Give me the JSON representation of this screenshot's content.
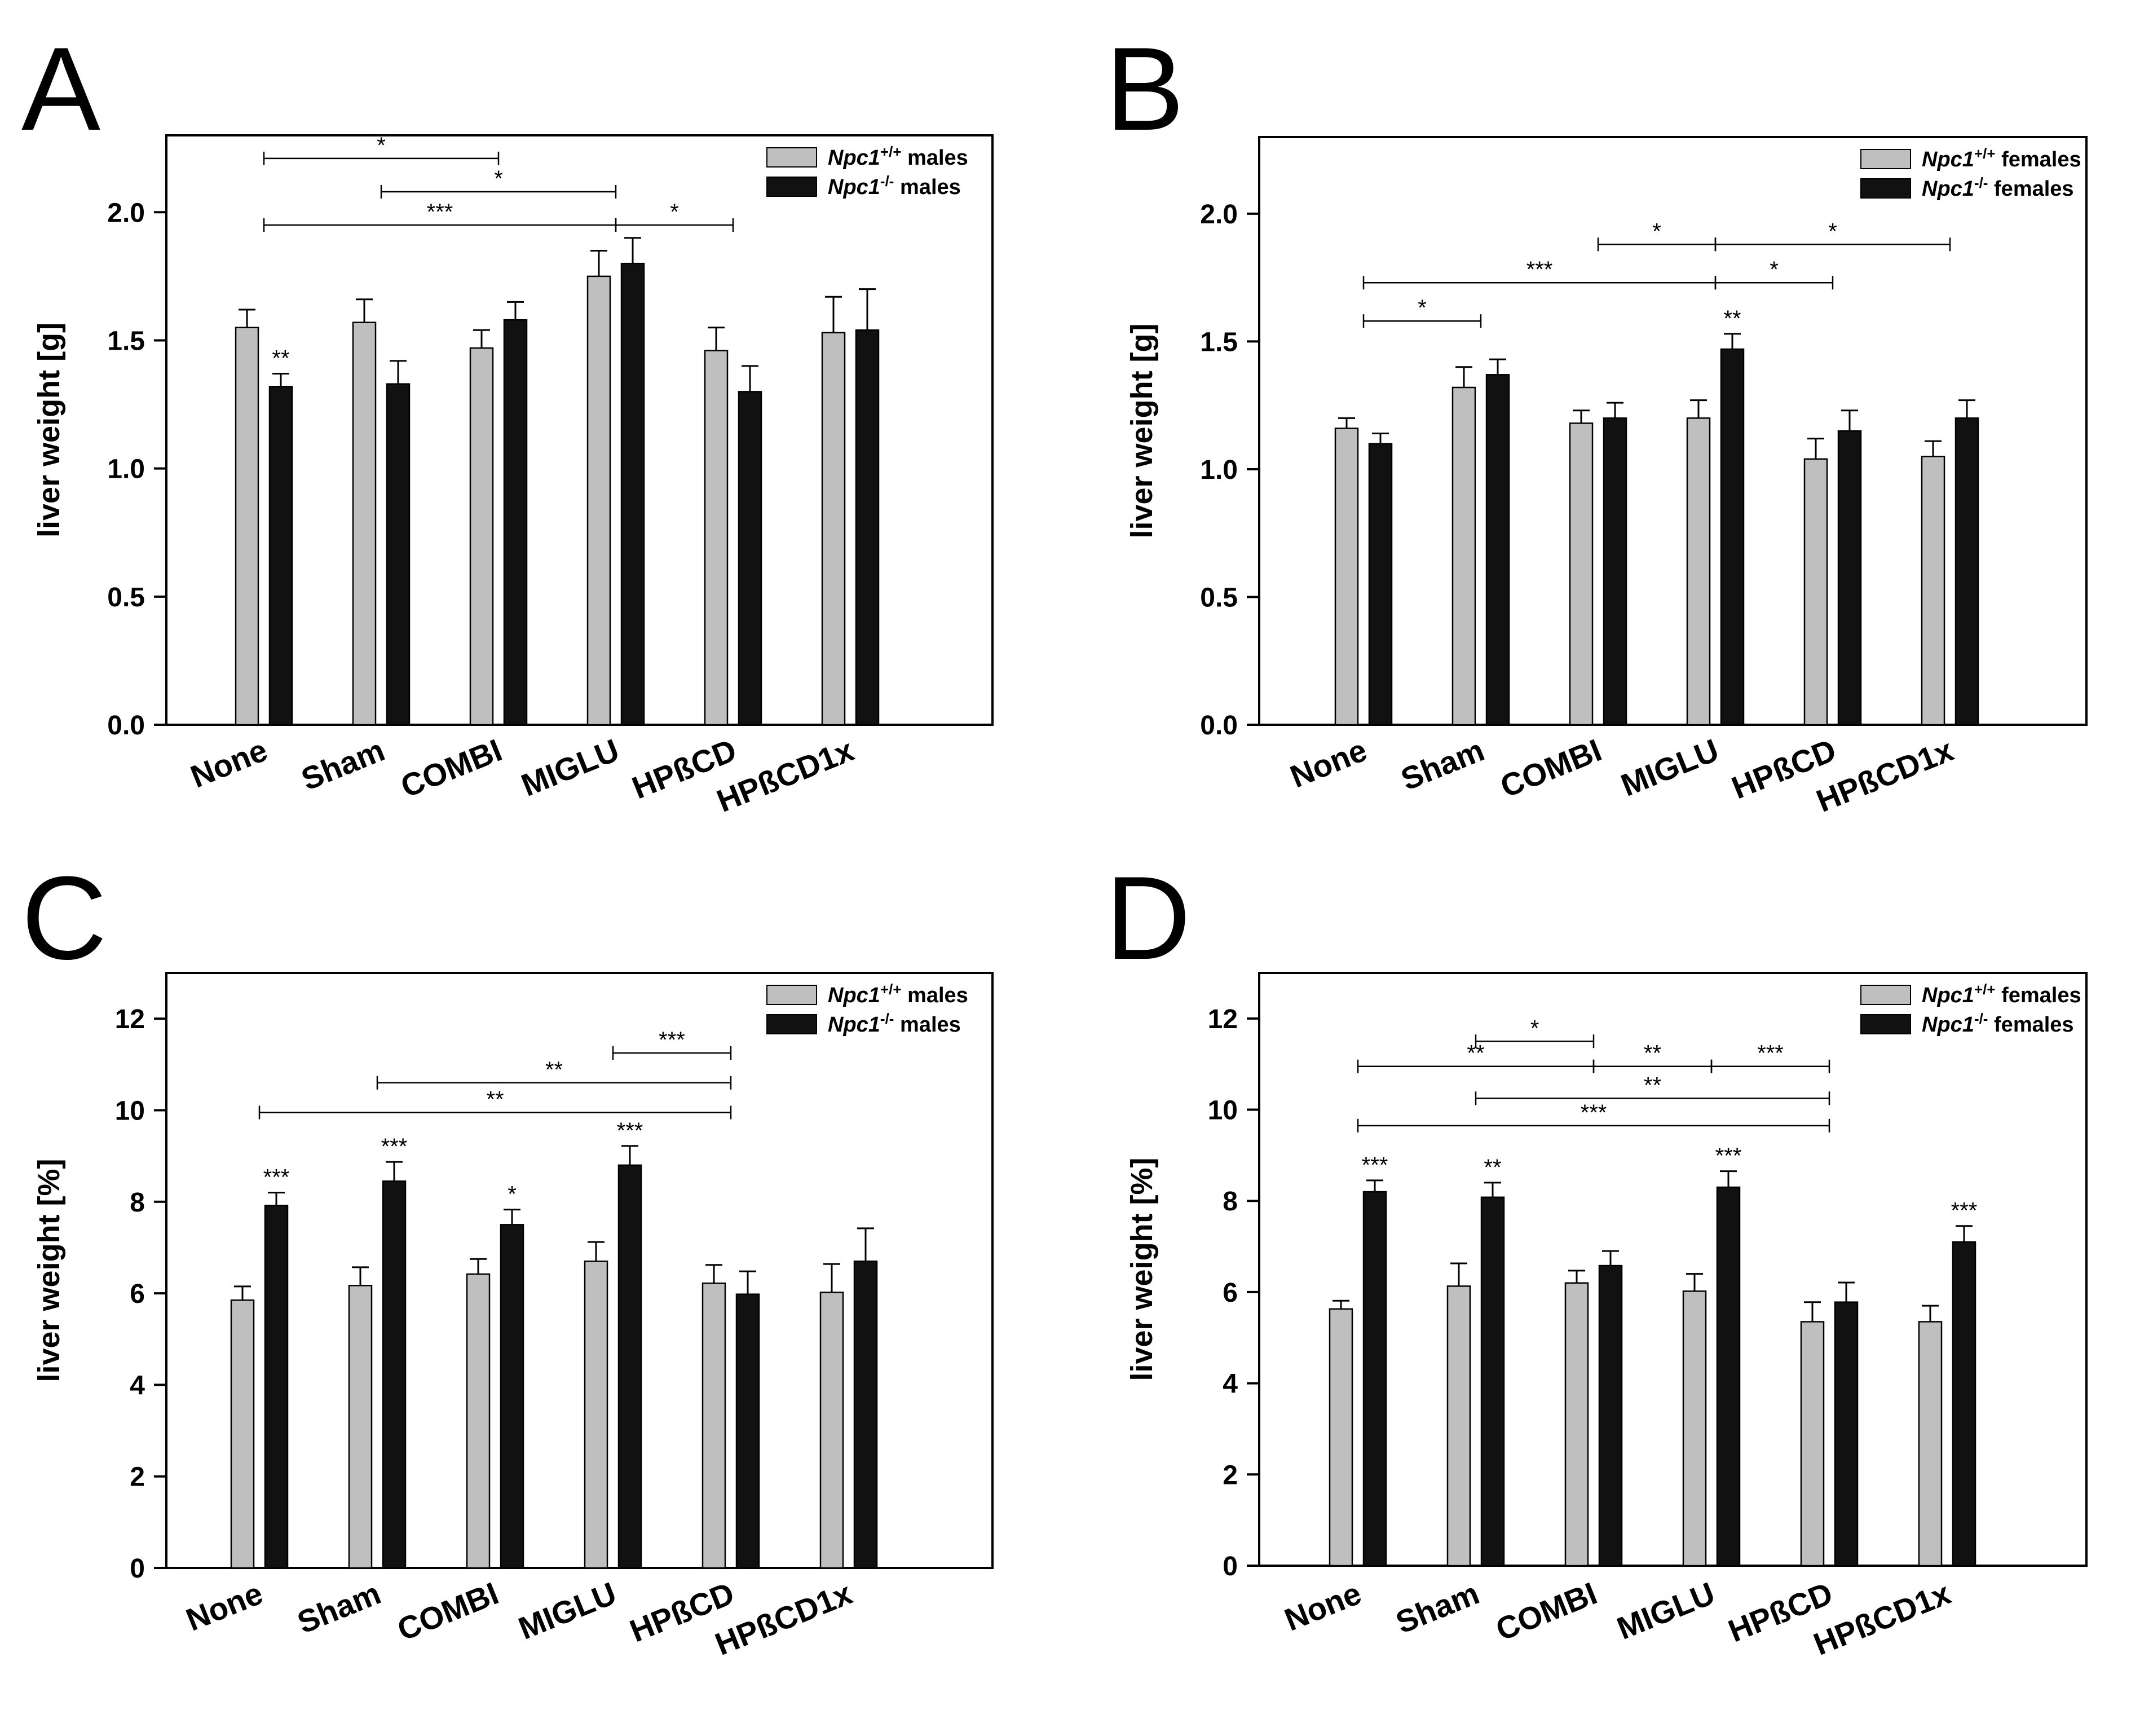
{
  "colors": {
    "wildtype": "#bfbfbf",
    "mutant": "#111111",
    "axis": "#000000"
  },
  "chart_data": [
    {
      "panel": "A",
      "type": "bar",
      "ylabel": "liver weight [g]",
      "ylim": [
        0,
        2.3
      ],
      "yticks": [
        0.0,
        0.5,
        1.0,
        1.5,
        2.0
      ],
      "ytick_labels": [
        "0.0",
        "0.5",
        "1.0",
        "1.5",
        "2.0"
      ],
      "categories": [
        "None",
        "Sham",
        "COMBI",
        "MIGLU",
        "HPßCD",
        "HPßCD1x"
      ],
      "legend_position": "top-right",
      "series": [
        {
          "name": "Npc1+/+ males",
          "legend_italic": "Npc1",
          "legend_sup": "+/+",
          "legend_suffix": "males",
          "values": [
            1.55,
            1.57,
            1.47,
            1.75,
            1.46,
            1.53
          ],
          "errors": [
            0.07,
            0.09,
            0.07,
            0.1,
            0.09,
            0.14
          ]
        },
        {
          "name": "Npc1-/- males",
          "legend_italic": "Npc1",
          "legend_sup": "-/-",
          "legend_suffix": "males",
          "values": [
            1.32,
            1.33,
            1.58,
            1.8,
            1.3,
            1.54
          ],
          "errors": [
            0.05,
            0.09,
            0.07,
            0.1,
            0.1,
            0.16
          ]
        }
      ],
      "bar_annotations": [
        {
          "category": 0,
          "series": 1,
          "text": "**"
        }
      ],
      "brackets": [
        {
          "from": 0,
          "to": 2,
          "y": 2.21,
          "text": "*"
        },
        {
          "from": 1,
          "to": 3,
          "y": 2.08,
          "text": "*"
        },
        {
          "from": 0,
          "to": 3,
          "y": 1.95,
          "text": "***"
        },
        {
          "from": 3,
          "to": 4,
          "y": 1.95,
          "text": "*"
        }
      ]
    },
    {
      "panel": "B",
      "type": "bar",
      "ylabel": "liver weight [g]",
      "ylim": [
        0,
        2.3
      ],
      "yticks": [
        0.0,
        0.5,
        1.0,
        1.5,
        2.0
      ],
      "ytick_labels": [
        "0.0",
        "0.5",
        "1.0",
        "1.5",
        "2.0"
      ],
      "categories": [
        "None",
        "Sham",
        "COMBI",
        "MIGLU",
        "HPßCD",
        "HPßCD1x"
      ],
      "legend_position": "top-right",
      "series": [
        {
          "name": "Npc1+/+ females",
          "legend_italic": "Npc1",
          "legend_sup": "+/+",
          "legend_suffix": "females",
          "values": [
            1.16,
            1.32,
            1.18,
            1.2,
            1.04,
            1.05
          ],
          "errors": [
            0.04,
            0.08,
            0.05,
            0.07,
            0.08,
            0.06
          ]
        },
        {
          "name": "Npc1-/- females",
          "legend_italic": "Npc1",
          "legend_sup": "-/-",
          "legend_suffix": "females",
          "values": [
            1.1,
            1.37,
            1.2,
            1.47,
            1.15,
            1.2
          ],
          "errors": [
            0.04,
            0.06,
            0.06,
            0.06,
            0.08,
            0.07
          ]
        }
      ],
      "bar_annotations": [
        {
          "category": 3,
          "series": 1,
          "text": "**"
        }
      ],
      "brackets": [
        {
          "from": 2,
          "to": 3,
          "y": 1.88,
          "text": "*"
        },
        {
          "from": 3,
          "to": 5,
          "y": 1.88,
          "text": "*"
        },
        {
          "from": 0,
          "to": 3,
          "y": 1.73,
          "text": "***"
        },
        {
          "from": 3,
          "to": 4,
          "y": 1.73,
          "text": "*"
        },
        {
          "from": 0,
          "to": 1,
          "y": 1.58,
          "text": "*"
        }
      ]
    },
    {
      "panel": "C",
      "type": "bar",
      "ylabel": "liver weight [%]",
      "ylim": [
        0,
        13
      ],
      "yticks": [
        0,
        2,
        4,
        6,
        8,
        10,
        12
      ],
      "ytick_labels": [
        "0",
        "2",
        "4",
        "6",
        "8",
        "10",
        "12"
      ],
      "categories": [
        "None",
        "Sham",
        "COMBI",
        "MIGLU",
        "HPßCD",
        "HPßCD1x"
      ],
      "legend_position": "top-right",
      "series": [
        {
          "name": "Npc1+/+ males",
          "legend_italic": "Npc1",
          "legend_sup": "+/+",
          "legend_suffix": "males",
          "values": [
            5.85,
            6.17,
            6.42,
            6.7,
            6.22,
            6.02
          ],
          "errors": [
            0.3,
            0.4,
            0.33,
            0.42,
            0.4,
            0.62
          ]
        },
        {
          "name": "Npc1-/- males",
          "legend_italic": "Npc1",
          "legend_sup": "-/-",
          "legend_suffix": "males",
          "values": [
            7.92,
            8.45,
            7.5,
            8.8,
            5.98,
            6.7
          ],
          "errors": [
            0.28,
            0.42,
            0.33,
            0.42,
            0.5,
            0.72
          ]
        }
      ],
      "bar_annotations": [
        {
          "category": 0,
          "series": 1,
          "text": "***"
        },
        {
          "category": 1,
          "series": 1,
          "text": "***"
        },
        {
          "category": 2,
          "series": 1,
          "text": "*"
        },
        {
          "category": 3,
          "series": 1,
          "text": "***"
        }
      ],
      "brackets": [
        {
          "from": 3,
          "to": 4,
          "y": 11.25,
          "text": "***"
        },
        {
          "from": 1,
          "to": 4,
          "y": 10.6,
          "text": "**"
        },
        {
          "from": 0,
          "to": 4,
          "y": 9.95,
          "text": "**"
        }
      ]
    },
    {
      "panel": "D",
      "type": "bar",
      "ylabel": "liver weight [%]",
      "ylim": [
        0,
        13
      ],
      "yticks": [
        0,
        2,
        4,
        6,
        8,
        10,
        12
      ],
      "ytick_labels": [
        "0",
        "2",
        "4",
        "6",
        "8",
        "10",
        "12"
      ],
      "categories": [
        "None",
        "Sham",
        "COMBI",
        "MIGLU",
        "HPßCD",
        "HPßCD1x"
      ],
      "legend_position": "top-right",
      "series": [
        {
          "name": "Npc1+/+ females",
          "legend_italic": "Npc1",
          "legend_sup": "+/+",
          "legend_suffix": "females",
          "values": [
            5.63,
            6.13,
            6.2,
            6.02,
            5.35,
            5.35
          ],
          "errors": [
            0.18,
            0.5,
            0.27,
            0.38,
            0.43,
            0.35
          ]
        },
        {
          "name": "Npc1-/- females",
          "legend_italic": "Npc1",
          "legend_sup": "-/-",
          "legend_suffix": "females",
          "values": [
            8.2,
            8.08,
            6.58,
            8.3,
            5.78,
            7.1
          ],
          "errors": [
            0.25,
            0.32,
            0.32,
            0.35,
            0.43,
            0.35
          ]
        }
      ],
      "bar_annotations": [
        {
          "category": 0,
          "series": 1,
          "text": "***"
        },
        {
          "category": 1,
          "series": 1,
          "text": "**"
        },
        {
          "category": 3,
          "series": 1,
          "text": "***"
        },
        {
          "category": 5,
          "series": 1,
          "text": "***"
        }
      ],
      "brackets": [
        {
          "from": 1,
          "to": 2,
          "y": 11.5,
          "text": "*"
        },
        {
          "from": 0,
          "to": 2,
          "y": 10.95,
          "text": "**"
        },
        {
          "from": 2,
          "to": 3,
          "y": 10.95,
          "text": "**"
        },
        {
          "from": 3,
          "to": 4,
          "y": 10.95,
          "text": "***"
        },
        {
          "from": 1,
          "to": 4,
          "y": 10.25,
          "text": "**"
        },
        {
          "from": 0,
          "to": 4,
          "y": 9.65,
          "text": "***"
        }
      ]
    }
  ]
}
